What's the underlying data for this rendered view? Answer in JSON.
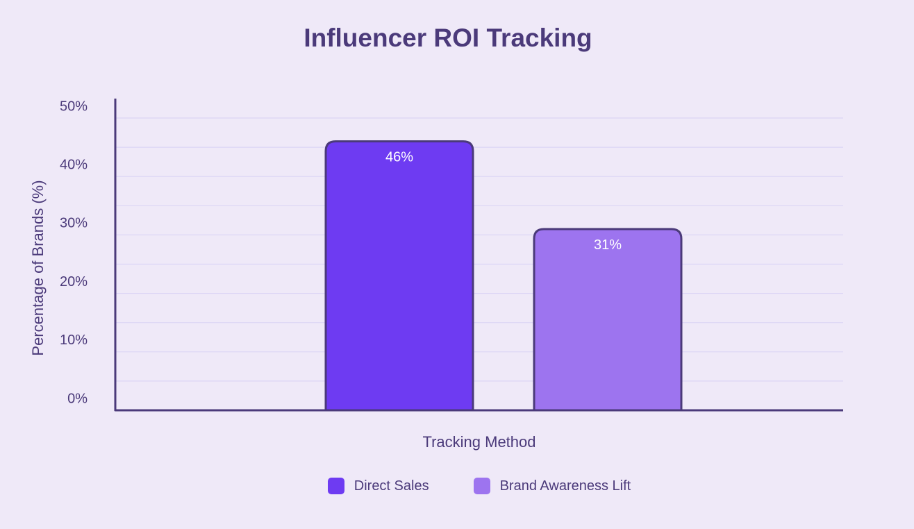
{
  "chart_data": {
    "type": "bar",
    "title": "Influencer ROI Tracking",
    "xlabel": "Tracking Method",
    "ylabel": "Percentage of Brands (%)",
    "categories": [
      "Direct Sales",
      "Brand Awareness Lift"
    ],
    "values": [
      46,
      31
    ],
    "value_labels": [
      "46%",
      "31%"
    ],
    "ylim": [
      0,
      50
    ],
    "yticks": [
      0,
      10,
      20,
      30,
      40,
      50
    ],
    "ytick_labels": [
      "0%",
      "10%",
      "20%",
      "30%",
      "40%",
      "50%"
    ],
    "grid": true,
    "legend": {
      "position": "bottom",
      "entries": [
        "Direct Sales",
        "Brand Awareness Lift"
      ]
    },
    "colors": [
      "#6e3bf2",
      "#9d74ef"
    ],
    "axis_color": "#4b3a7a",
    "grid_color": "#dcd5f5"
  }
}
